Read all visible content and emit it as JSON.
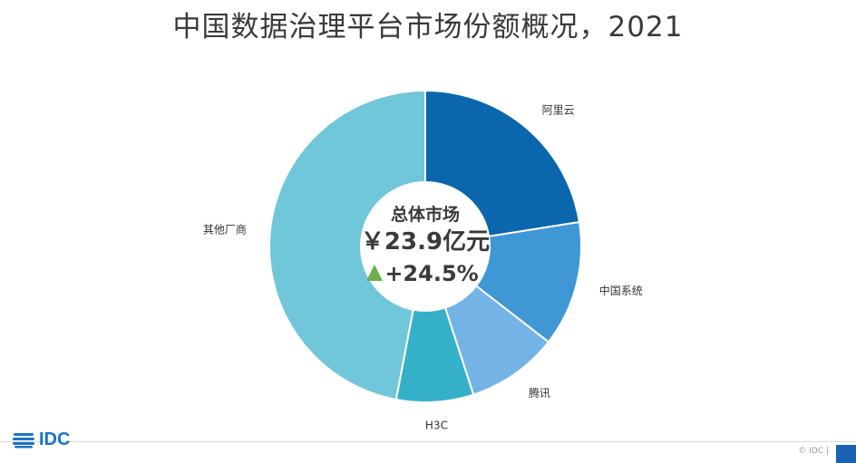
{
  "title": "中国数据治理平台市场份额概况，2021",
  "center": {
    "label": "总体市场",
    "value": "￥23.9亿元",
    "growth": "+24.5%",
    "growth_icon": "up-triangle-icon",
    "growth_color": "#6ab04c"
  },
  "chart_data": {
    "type": "pie",
    "donut": true,
    "title": "中国数据治理平台市场份额概况，2021",
    "series": [
      {
        "name": "阿里云",
        "value": 22.5,
        "color": "#0a66ad"
      },
      {
        "name": "中国系统",
        "value": 13.0,
        "color": "#3f97d6"
      },
      {
        "name": "腾讯",
        "value": 9.5,
        "color": "#74b3e6"
      },
      {
        "name": "H3C",
        "value": 8.0,
        "color": "#35b0c9"
      },
      {
        "name": "其他厂商",
        "value": 47.0,
        "color": "#6fc7d9"
      }
    ]
  },
  "logo": {
    "text": "IDC"
  },
  "footer": {
    "copyright": "© IDC |"
  }
}
